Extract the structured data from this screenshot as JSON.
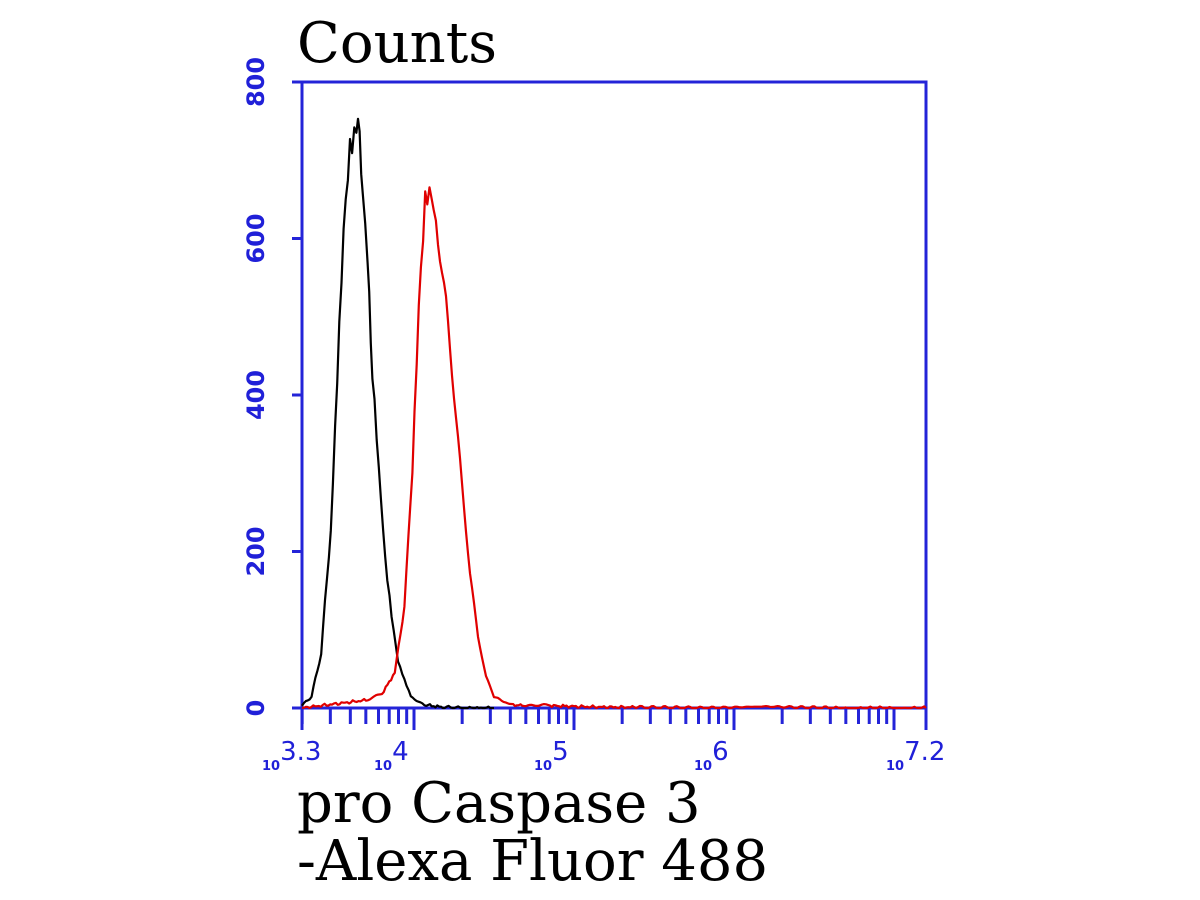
{
  "chart_data": {
    "type": "line",
    "ylabel": "Counts",
    "xlabel_lines": [
      "pro Caspase 3",
      "-Alexa Fluor 488"
    ],
    "x_scale": "log10",
    "xlim": [
      3.3,
      7.2
    ],
    "ylim": [
      0,
      800
    ],
    "y_ticks": [
      "0",
      "200",
      "400",
      "600",
      "800"
    ],
    "x_ticks": [
      {
        "base": "10",
        "exp": "3.3",
        "value": 3.3
      },
      {
        "base": "10",
        "exp": "4",
        "value": 4
      },
      {
        "base": "10",
        "exp": "5",
        "value": 5
      },
      {
        "base": "10",
        "exp": "6",
        "value": 6
      },
      {
        "base": "10",
        "exp": "7.2",
        "value": 7.2
      }
    ],
    "grid": false,
    "legend": "none",
    "series": [
      {
        "color": "#000000",
        "x": [
          3.3,
          3.36,
          3.42,
          3.48,
          3.52,
          3.56,
          3.6,
          3.64,
          3.66,
          3.68,
          3.71,
          3.74,
          3.78,
          3.82,
          3.86,
          3.9,
          3.94,
          3.98,
          4.04,
          4.1,
          4.18,
          4.3,
          4.5
        ],
        "y": [
          3,
          15,
          70,
          230,
          420,
          600,
          720,
          755,
          720,
          660,
          560,
          430,
          300,
          190,
          120,
          60,
          35,
          15,
          6,
          3,
          1,
          0,
          0
        ]
      },
      {
        "color": "#e00000",
        "x": [
          3.3,
          3.5,
          3.7,
          3.8,
          3.88,
          3.94,
          3.99,
          4.03,
          4.07,
          4.11,
          4.15,
          4.2,
          4.25,
          4.3,
          4.35,
          4.4,
          4.45,
          4.5,
          4.56,
          4.62,
          4.7,
          4.85,
          5.0,
          5.2,
          5.4,
          5.8,
          6.2,
          6.6,
          7.2
        ],
        "y": [
          0,
          5,
          10,
          18,
          45,
          130,
          310,
          520,
          640,
          650,
          610,
          520,
          400,
          280,
          170,
          90,
          40,
          15,
          8,
          4,
          3,
          3,
          2,
          1,
          1,
          0,
          2,
          0,
          0
        ]
      }
    ]
  }
}
